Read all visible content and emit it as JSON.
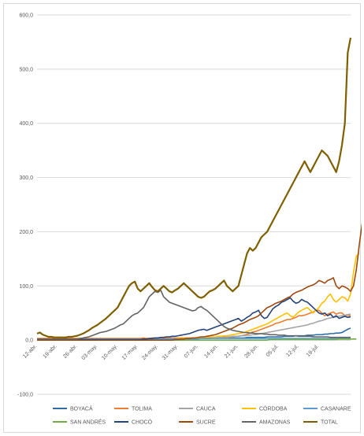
{
  "chart_data": {
    "type": "line",
    "title": "",
    "xlabel": "",
    "ylabel": "",
    "ylim": [
      -100,
      600
    ],
    "yticks": [
      -100,
      0,
      100,
      200,
      300,
      400,
      500,
      600
    ],
    "ytick_labels": [
      "-100,0",
      "0,0",
      "100,0",
      "200,0",
      "300,0",
      "400,0",
      "500,0",
      "600,0"
    ],
    "x_start_label": "12-abr.",
    "xtick_labels": [
      "12-abr.",
      "19-abr.",
      "26-abr.",
      "03-may.",
      "10-may.",
      "17-may.",
      "24-may.",
      "31-may.",
      "07-jun.",
      "14-jun.",
      "21-jun.",
      "28-jun.",
      "05-jul.",
      "12-jul.",
      "19-jul."
    ],
    "grid": "horizontal",
    "legend_position": "bottom",
    "series": [
      {
        "name": "BOYACÁ",
        "color": "#2e6da4",
        "values": [
          0,
          0,
          0,
          0,
          0,
          0,
          0,
          0,
          0,
          0,
          0,
          0,
          0,
          0,
          0,
          0,
          0,
          0,
          0,
          0,
          1,
          1,
          1,
          1,
          1,
          1,
          1,
          1,
          1,
          1,
          1,
          1,
          1,
          1,
          1,
          1,
          1,
          1,
          2,
          2,
          2,
          2,
          2,
          2,
          2,
          2,
          2,
          2,
          2,
          3,
          3,
          3,
          3,
          3,
          3,
          3,
          3,
          3,
          3,
          3,
          3,
          4,
          4,
          4,
          4,
          4,
          4,
          4,
          4,
          4,
          4,
          4,
          4,
          5,
          5,
          5,
          5,
          5,
          5,
          5,
          6,
          6,
          6,
          6,
          6,
          6,
          7,
          7,
          7,
          7,
          8,
          8,
          8,
          8,
          9,
          9,
          9,
          10,
          10,
          10,
          11,
          11,
          12,
          12,
          13,
          13,
          14,
          17,
          20,
          22
        ]
      },
      {
        "name": "TOLIMA",
        "color": "#ed7d31",
        "values": [
          3,
          3,
          3,
          3,
          3,
          3,
          3,
          3,
          3,
          3,
          3,
          3,
          3,
          3,
          3,
          3,
          3,
          3,
          3,
          3,
          3,
          3,
          3,
          3,
          3,
          3,
          3,
          3,
          3,
          3,
          3,
          3,
          3,
          3,
          3,
          3,
          3,
          4,
          3,
          3,
          4,
          4,
          4,
          4,
          4,
          4,
          4,
          4,
          4,
          4,
          4,
          4,
          4,
          4,
          4,
          4,
          4,
          4,
          4,
          4,
          4,
          5,
          5,
          5,
          5,
          5,
          5,
          6,
          6,
          7,
          7,
          8,
          9,
          11,
          13,
          15,
          16,
          18,
          20,
          22,
          24,
          26,
          28,
          31,
          32,
          34,
          36,
          38,
          38,
          40,
          42,
          45,
          45,
          46,
          48,
          50,
          52,
          55,
          55,
          50,
          45,
          48,
          50,
          52,
          48,
          50,
          50,
          45,
          46,
          45
        ]
      },
      {
        "name": "CAUCA",
        "color": "#a5a5a5",
        "values": [
          0,
          0,
          0,
          0,
          0,
          0,
          0,
          0,
          0,
          0,
          0,
          0,
          0,
          0,
          0,
          0,
          0,
          0,
          0,
          0,
          1,
          1,
          1,
          1,
          1,
          1,
          1,
          1,
          1,
          1,
          1,
          1,
          1,
          1,
          1,
          1,
          2,
          2,
          2,
          2,
          2,
          2,
          2,
          2,
          2,
          2,
          3,
          3,
          3,
          3,
          3,
          3,
          3,
          3,
          3,
          4,
          4,
          4,
          4,
          5,
          5,
          5,
          5,
          5,
          5,
          6,
          6,
          6,
          7,
          7,
          7,
          8,
          8,
          9,
          9,
          10,
          10,
          11,
          12,
          13,
          14,
          15,
          16,
          17,
          18,
          19,
          20,
          21,
          22,
          23,
          24,
          25,
          26,
          27,
          28,
          30,
          31,
          33,
          35,
          36,
          38,
          40,
          41,
          42,
          43,
          44,
          45,
          46,
          47,
          48
        ]
      },
      {
        "name": "CÓRDOBA",
        "color": "#ffc000",
        "values": [
          0,
          0,
          0,
          0,
          0,
          0,
          0,
          0,
          0,
          0,
          0,
          0,
          0,
          0,
          0,
          0,
          0,
          0,
          0,
          0,
          0,
          0,
          0,
          0,
          0,
          0,
          0,
          0,
          0,
          0,
          0,
          0,
          0,
          0,
          1,
          1,
          1,
          1,
          1,
          1,
          1,
          1,
          1,
          1,
          2,
          2,
          2,
          2,
          2,
          3,
          3,
          3,
          3,
          3,
          4,
          4,
          4,
          5,
          5,
          5,
          6,
          6,
          6,
          7,
          7,
          8,
          8,
          9,
          10,
          11,
          12,
          13,
          14,
          16,
          18,
          20,
          22,
          24,
          26,
          28,
          30,
          33,
          36,
          39,
          42,
          45,
          48,
          50,
          45,
          42,
          47,
          52,
          55,
          58,
          60,
          55,
          50,
          55,
          60,
          68,
          72,
          80,
          85,
          75,
          70,
          75,
          80,
          78,
          72,
          85,
          125,
          155,
          160
        ]
      },
      {
        "name": "CASANARE",
        "color": "#5b9bd5",
        "values": [
          2,
          2,
          2,
          2,
          2,
          2,
          2,
          2,
          2,
          2,
          2,
          2,
          2,
          2,
          2,
          2,
          2,
          2,
          2,
          2,
          2,
          2,
          2,
          2,
          2,
          2,
          2,
          2,
          2,
          2,
          2,
          2,
          2,
          2,
          2,
          2,
          2,
          2,
          2,
          2,
          2,
          2,
          2,
          2,
          2,
          2,
          2,
          2,
          2,
          2,
          2,
          2,
          2,
          2,
          2,
          2,
          2,
          3,
          3,
          3,
          3,
          3,
          3,
          3,
          3,
          3,
          3,
          3,
          3,
          3,
          3,
          3,
          3,
          3,
          3,
          3,
          3,
          3,
          3,
          3,
          3,
          3,
          3,
          3,
          3,
          3,
          3,
          3,
          3,
          3,
          3,
          3,
          3,
          3,
          3,
          3,
          3,
          3,
          3,
          3,
          3,
          3,
          3,
          3,
          3,
          3,
          3,
          3,
          3,
          3
        ]
      },
      {
        "name": "SAN ANDRÉS",
        "color": "#70ad47",
        "values": [
          0,
          0,
          0,
          0,
          0,
          0,
          0,
          0,
          0,
          0,
          0,
          0,
          0,
          0,
          0,
          0,
          0,
          0,
          0,
          0,
          0,
          0,
          0,
          0,
          0,
          0,
          0,
          0,
          0,
          0,
          0,
          0,
          0,
          0,
          0,
          0,
          0,
          0,
          0,
          0,
          0,
          0,
          0,
          0,
          0,
          0,
          0,
          0,
          0,
          0,
          0,
          0,
          0,
          0,
          0,
          0,
          0,
          0,
          0,
          0,
          0,
          0,
          0,
          0,
          0,
          0,
          0,
          0,
          0,
          0,
          0,
          0,
          0,
          0,
          0,
          0,
          0,
          0,
          0,
          0,
          0,
          1,
          1,
          1,
          1,
          1,
          1,
          1,
          1,
          1,
          1,
          1,
          1,
          1,
          1,
          1,
          1,
          1,
          1,
          1,
          1,
          1,
          1,
          1,
          1,
          2,
          2,
          2,
          2,
          2,
          2,
          2
        ]
      },
      {
        "name": "CHOCÓ",
        "color": "#264478",
        "values": [
          1,
          1,
          1,
          1,
          1,
          1,
          1,
          1,
          1,
          1,
          1,
          1,
          1,
          1,
          1,
          1,
          1,
          1,
          1,
          1,
          1,
          1,
          1,
          1,
          1,
          1,
          1,
          1,
          1,
          1,
          1,
          1,
          1,
          1,
          1,
          1,
          1,
          2,
          2,
          3,
          3,
          4,
          4,
          5,
          5,
          6,
          6,
          7,
          7,
          8,
          9,
          10,
          11,
          12,
          14,
          16,
          18,
          19,
          20,
          18,
          20,
          22,
          24,
          26,
          28,
          30,
          32,
          34,
          36,
          38,
          40,
          35,
          38,
          42,
          45,
          50,
          52,
          55,
          45,
          40,
          42,
          50,
          58,
          62,
          65,
          70,
          72,
          75,
          78,
          72,
          68,
          70,
          75,
          72,
          70,
          65,
          60,
          55,
          50,
          48,
          50,
          45,
          48,
          42,
          45,
          40,
          42,
          44,
          42,
          43
        ]
      },
      {
        "name": "SUCRE",
        "color": "#9e480e",
        "values": [
          0,
          0,
          0,
          0,
          0,
          0,
          0,
          0,
          0,
          0,
          0,
          0,
          0,
          0,
          0,
          0,
          0,
          0,
          0,
          0,
          0,
          0,
          0,
          0,
          0,
          0,
          0,
          0,
          0,
          0,
          0,
          0,
          0,
          0,
          0,
          0,
          0,
          0,
          0,
          0,
          0,
          0,
          0,
          0,
          0,
          0,
          0,
          0,
          1,
          1,
          2,
          2,
          3,
          3,
          4,
          4,
          5,
          6,
          6,
          7,
          8,
          9,
          10,
          12,
          14,
          16,
          18,
          20,
          22,
          25,
          28,
          30,
          32,
          35,
          38,
          40,
          42,
          45,
          50,
          55,
          60,
          62,
          65,
          68,
          70,
          72,
          75,
          78,
          80,
          85,
          88,
          90,
          92,
          95,
          98,
          100,
          102,
          105,
          110,
          108,
          105,
          110,
          112,
          115,
          100,
          95,
          100,
          98,
          95,
          90,
          100,
          130,
          175,
          215,
          230
        ]
      },
      {
        "name": "AMAZONAS",
        "color": "#636363",
        "values": [
          2,
          2,
          2,
          2,
          2,
          2,
          2,
          2,
          2,
          2,
          2,
          2,
          2,
          2,
          2,
          3,
          4,
          5,
          6,
          8,
          10,
          12,
          14,
          15,
          16,
          18,
          20,
          22,
          25,
          28,
          30,
          35,
          40,
          45,
          48,
          50,
          55,
          60,
          70,
          80,
          85,
          90,
          88,
          92,
          80,
          75,
          70,
          68,
          66,
          64,
          62,
          60,
          58,
          56,
          54,
          55,
          60,
          62,
          58,
          55,
          50,
          45,
          40,
          35,
          30,
          25,
          22,
          20,
          18,
          17,
          16,
          15,
          14,
          14,
          13,
          13,
          12,
          12,
          12,
          11,
          11,
          10,
          10,
          10,
          9,
          9,
          9,
          8,
          8,
          8,
          8,
          7,
          7,
          7,
          7,
          7,
          6,
          6,
          6,
          6,
          6,
          6,
          5,
          5,
          5,
          5,
          5,
          5,
          5,
          5
        ]
      },
      {
        "name": "TOTAL",
        "color": "#7f6000",
        "values": [
          12,
          14,
          10,
          8,
          6,
          6,
          5,
          5,
          5,
          5,
          5,
          6,
          6,
          7,
          8,
          10,
          12,
          15,
          18,
          22,
          25,
          28,
          32,
          36,
          40,
          45,
          50,
          55,
          60,
          70,
          80,
          90,
          100,
          105,
          108,
          95,
          90,
          95,
          100,
          105,
          98,
          92,
          90,
          95,
          100,
          95,
          90,
          88,
          92,
          95,
          100,
          105,
          100,
          95,
          90,
          85,
          80,
          78,
          80,
          85,
          90,
          92,
          95,
          100,
          105,
          110,
          100,
          95,
          90,
          95,
          100,
          120,
          140,
          160,
          170,
          165,
          170,
          180,
          190,
          195,
          200,
          210,
          220,
          230,
          240,
          250,
          260,
          270,
          280,
          290,
          300,
          310,
          320,
          330,
          320,
          310,
          320,
          330,
          340,
          350,
          345,
          340,
          330,
          320,
          310,
          330,
          360,
          400,
          530,
          558
        ]
      }
    ]
  }
}
